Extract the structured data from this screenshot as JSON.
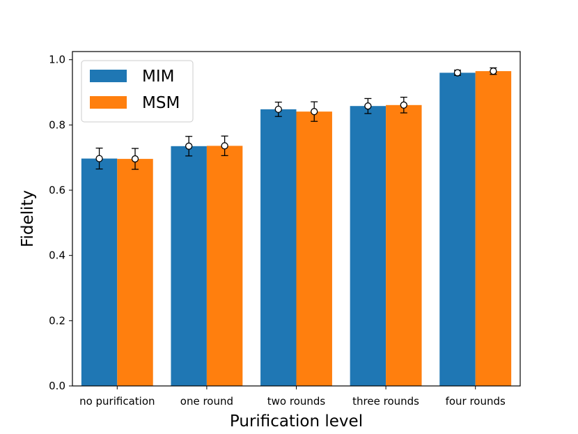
{
  "chart_data": {
    "type": "bar",
    "categories": [
      "no purification",
      "one round",
      "two rounds",
      "three rounds",
      "four rounds"
    ],
    "series": [
      {
        "name": "MIM",
        "color": "#1f77b4",
        "values": [
          0.697,
          0.735,
          0.848,
          0.858,
          0.96
        ],
        "markers": [
          0.697,
          0.735,
          0.848,
          0.858,
          0.96
        ],
        "errors": [
          0.032,
          0.03,
          0.022,
          0.023,
          0.008
        ]
      },
      {
        "name": "MSM",
        "color": "#ff7f0e",
        "values": [
          0.696,
          0.736,
          0.841,
          0.861,
          0.965
        ],
        "markers": [
          0.696,
          0.736,
          0.841,
          0.861,
          0.965
        ],
        "errors": [
          0.032,
          0.03,
          0.03,
          0.024,
          0.01
        ]
      }
    ],
    "xlabel": "Purification level",
    "ylabel": "Fidelity",
    "ylim": [
      0.0,
      1.025
    ],
    "yticks": [
      "0.0",
      "0.2",
      "0.4",
      "0.6",
      "0.8",
      "1.0"
    ],
    "legend": "upper left",
    "grid": false
  }
}
